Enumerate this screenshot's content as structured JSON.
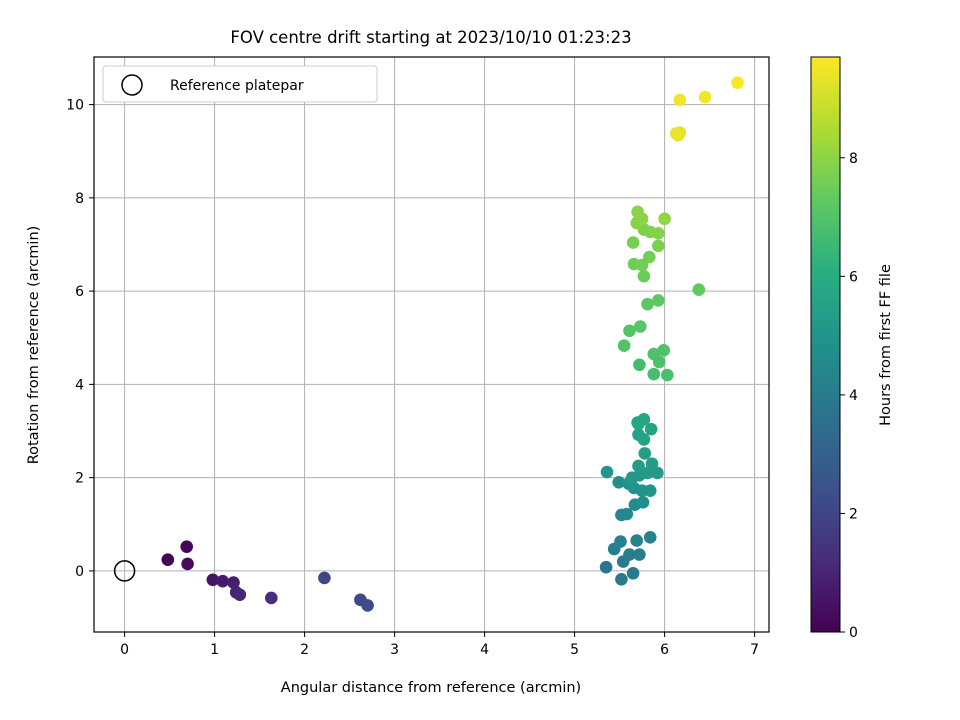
{
  "chart_data": {
    "type": "scatter",
    "title": "FOV centre drift starting at 2023/10/10 01:23:23",
    "xlabel": "Angular distance from reference (arcmin)",
    "ylabel": "Rotation from reference (arcmin)",
    "xlim": [
      -0.34,
      7.16
    ],
    "ylim": [
      -1.31,
      11.02
    ],
    "xticks": [
      "0",
      "1",
      "2",
      "3",
      "4",
      "5",
      "6",
      "7"
    ],
    "yticks": [
      "0",
      "2",
      "4",
      "6",
      "8",
      "10"
    ],
    "grid": true,
    "legend": {
      "position": "top-left",
      "entries": [
        "Reference platepar"
      ]
    },
    "reference_point": {
      "x": 0,
      "y": 0
    },
    "colorbar": {
      "label": "Hours from first FF file",
      "colormap": "viridis",
      "range": [
        0,
        9.7
      ],
      "ticks": [
        "0",
        "2",
        "4",
        "6",
        "8"
      ]
    },
    "points": [
      {
        "x": 0.48,
        "y": 0.24,
        "h": 0.1
      },
      {
        "x": 0.69,
        "y": 0.52,
        "h": 0.2
      },
      {
        "x": 0.7,
        "y": 0.15,
        "h": 0.3
      },
      {
        "x": 0.98,
        "y": -0.19,
        "h": 0.55
      },
      {
        "x": 1.09,
        "y": -0.22,
        "h": 0.7
      },
      {
        "x": 1.21,
        "y": -0.25,
        "h": 0.85
      },
      {
        "x": 1.24,
        "y": -0.46,
        "h": 0.95
      },
      {
        "x": 1.28,
        "y": -0.51,
        "h": 1.05
      },
      {
        "x": 1.63,
        "y": -0.58,
        "h": 1.25
      },
      {
        "x": 2.22,
        "y": -0.15,
        "h": 2.05
      },
      {
        "x": 2.62,
        "y": -0.62,
        "h": 2.2
      },
      {
        "x": 2.7,
        "y": -0.74,
        "h": 2.3
      },
      {
        "x": 5.35,
        "y": 0.08,
        "h": 3.8
      },
      {
        "x": 5.52,
        "y": -0.18,
        "h": 3.9
      },
      {
        "x": 5.65,
        "y": -0.05,
        "h": 3.95
      },
      {
        "x": 5.54,
        "y": 0.2,
        "h": 4.0
      },
      {
        "x": 5.61,
        "y": 0.35,
        "h": 4.05
      },
      {
        "x": 5.72,
        "y": 0.35,
        "h": 4.1
      },
      {
        "x": 5.44,
        "y": 0.47,
        "h": 4.15
      },
      {
        "x": 5.51,
        "y": 0.63,
        "h": 4.2
      },
      {
        "x": 5.69,
        "y": 0.65,
        "h": 4.25
      },
      {
        "x": 5.84,
        "y": 0.72,
        "h": 4.3
      },
      {
        "x": 5.52,
        "y": 1.2,
        "h": 4.45
      },
      {
        "x": 5.58,
        "y": 1.22,
        "h": 4.5
      },
      {
        "x": 5.67,
        "y": 1.42,
        "h": 4.6
      },
      {
        "x": 5.76,
        "y": 1.47,
        "h": 4.65
      },
      {
        "x": 5.49,
        "y": 1.9,
        "h": 4.8
      },
      {
        "x": 5.6,
        "y": 1.87,
        "h": 4.85
      },
      {
        "x": 5.66,
        "y": 1.78,
        "h": 4.9
      },
      {
        "x": 5.75,
        "y": 1.72,
        "h": 4.95
      },
      {
        "x": 5.84,
        "y": 1.72,
        "h": 5.0
      },
      {
        "x": 5.36,
        "y": 2.12,
        "h": 5.05
      },
      {
        "x": 5.64,
        "y": 2.0,
        "h": 5.1
      },
      {
        "x": 5.72,
        "y": 2.05,
        "h": 5.15
      },
      {
        "x": 5.81,
        "y": 2.1,
        "h": 5.2
      },
      {
        "x": 5.92,
        "y": 2.1,
        "h": 5.25
      },
      {
        "x": 5.71,
        "y": 2.25,
        "h": 5.3
      },
      {
        "x": 5.86,
        "y": 2.3,
        "h": 5.35
      },
      {
        "x": 5.78,
        "y": 2.52,
        "h": 5.4
      },
      {
        "x": 5.77,
        "y": 2.82,
        "h": 5.5
      },
      {
        "x": 5.71,
        "y": 2.92,
        "h": 5.55
      },
      {
        "x": 5.85,
        "y": 3.04,
        "h": 5.6
      },
      {
        "x": 5.71,
        "y": 3.15,
        "h": 5.65
      },
      {
        "x": 5.77,
        "y": 3.25,
        "h": 5.7
      },
      {
        "x": 5.7,
        "y": 3.18,
        "h": 5.75
      },
      {
        "x": 5.72,
        "y": 4.42,
        "h": 6.7
      },
      {
        "x": 5.88,
        "y": 4.22,
        "h": 6.75
      },
      {
        "x": 6.03,
        "y": 4.2,
        "h": 6.8
      },
      {
        "x": 5.94,
        "y": 4.48,
        "h": 6.85
      },
      {
        "x": 5.88,
        "y": 4.65,
        "h": 6.9
      },
      {
        "x": 5.99,
        "y": 4.73,
        "h": 6.95
      },
      {
        "x": 5.55,
        "y": 4.83,
        "h": 7.0
      },
      {
        "x": 5.61,
        "y": 5.15,
        "h": 7.05
      },
      {
        "x": 5.73,
        "y": 5.24,
        "h": 7.1
      },
      {
        "x": 5.81,
        "y": 5.72,
        "h": 7.2
      },
      {
        "x": 5.93,
        "y": 5.8,
        "h": 7.25
      },
      {
        "x": 6.38,
        "y": 6.03,
        "h": 7.3
      },
      {
        "x": 5.77,
        "y": 6.32,
        "h": 7.45
      },
      {
        "x": 5.66,
        "y": 6.58,
        "h": 7.5
      },
      {
        "x": 5.75,
        "y": 6.56,
        "h": 7.55
      },
      {
        "x": 5.83,
        "y": 6.73,
        "h": 7.6
      },
      {
        "x": 5.65,
        "y": 7.04,
        "h": 7.65
      },
      {
        "x": 5.93,
        "y": 6.97,
        "h": 7.7
      },
      {
        "x": 5.77,
        "y": 7.32,
        "h": 7.75
      },
      {
        "x": 5.84,
        "y": 7.27,
        "h": 7.8
      },
      {
        "x": 5.93,
        "y": 7.24,
        "h": 7.85
      },
      {
        "x": 5.69,
        "y": 7.46,
        "h": 7.9
      },
      {
        "x": 5.75,
        "y": 7.55,
        "h": 7.95
      },
      {
        "x": 5.7,
        "y": 7.7,
        "h": 8.0
      },
      {
        "x": 6.0,
        "y": 7.55,
        "h": 8.05
      },
      {
        "x": 6.13,
        "y": 9.38,
        "h": 9.3
      },
      {
        "x": 6.17,
        "y": 9.4,
        "h": 9.35
      },
      {
        "x": 6.15,
        "y": 9.34,
        "h": 9.4
      },
      {
        "x": 6.17,
        "y": 10.1,
        "h": 9.5
      },
      {
        "x": 6.45,
        "y": 10.16,
        "h": 9.55
      },
      {
        "x": 6.81,
        "y": 10.47,
        "h": 9.65
      }
    ]
  }
}
